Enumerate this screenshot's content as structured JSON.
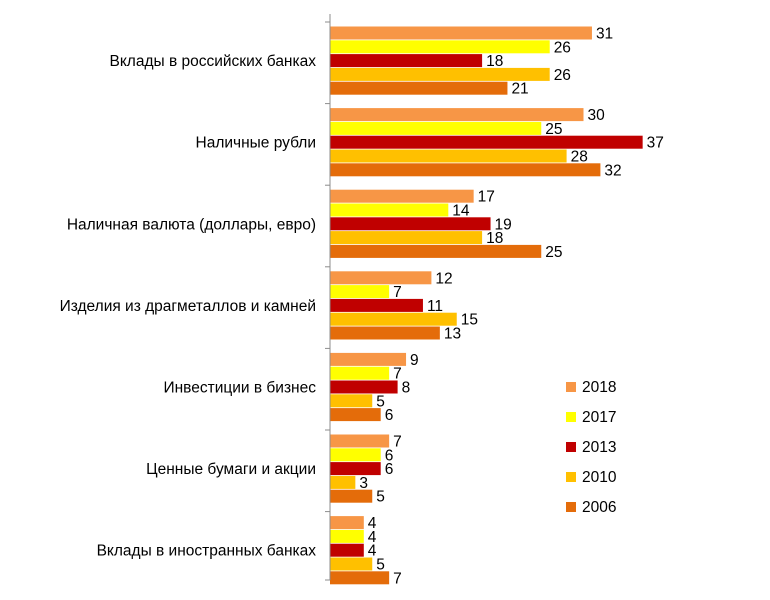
{
  "chart_data": {
    "type": "bar",
    "orientation": "horizontal",
    "categories": [
      "Вклады в российских банках",
      "Наличные рубли",
      "Наличная валюта (доллары, евро)",
      "Изделия из драгметаллов и камней",
      "Инвестиции в бизнес",
      "Ценные бумаги  и акции",
      "Вклады в иностранных банках"
    ],
    "series": [
      {
        "name": "2018",
        "color": "#f79646",
        "values": [
          31,
          30,
          17,
          12,
          9,
          7,
          4
        ]
      },
      {
        "name": "2017",
        "color": "#ffff00",
        "values": [
          26,
          25,
          14,
          7,
          7,
          6,
          4
        ]
      },
      {
        "name": "2013",
        "color": "#c00000",
        "values": [
          18,
          37,
          19,
          11,
          8,
          6,
          4
        ]
      },
      {
        "name": "2010",
        "color": "#ffc000",
        "values": [
          26,
          28,
          18,
          15,
          5,
          3,
          5
        ]
      },
      {
        "name": "2006",
        "color": "#e46c0a",
        "values": [
          21,
          32,
          25,
          13,
          6,
          5,
          7
        ]
      }
    ],
    "xlim": [
      0,
      40
    ],
    "grid": false,
    "legend": "bottom-right"
  }
}
